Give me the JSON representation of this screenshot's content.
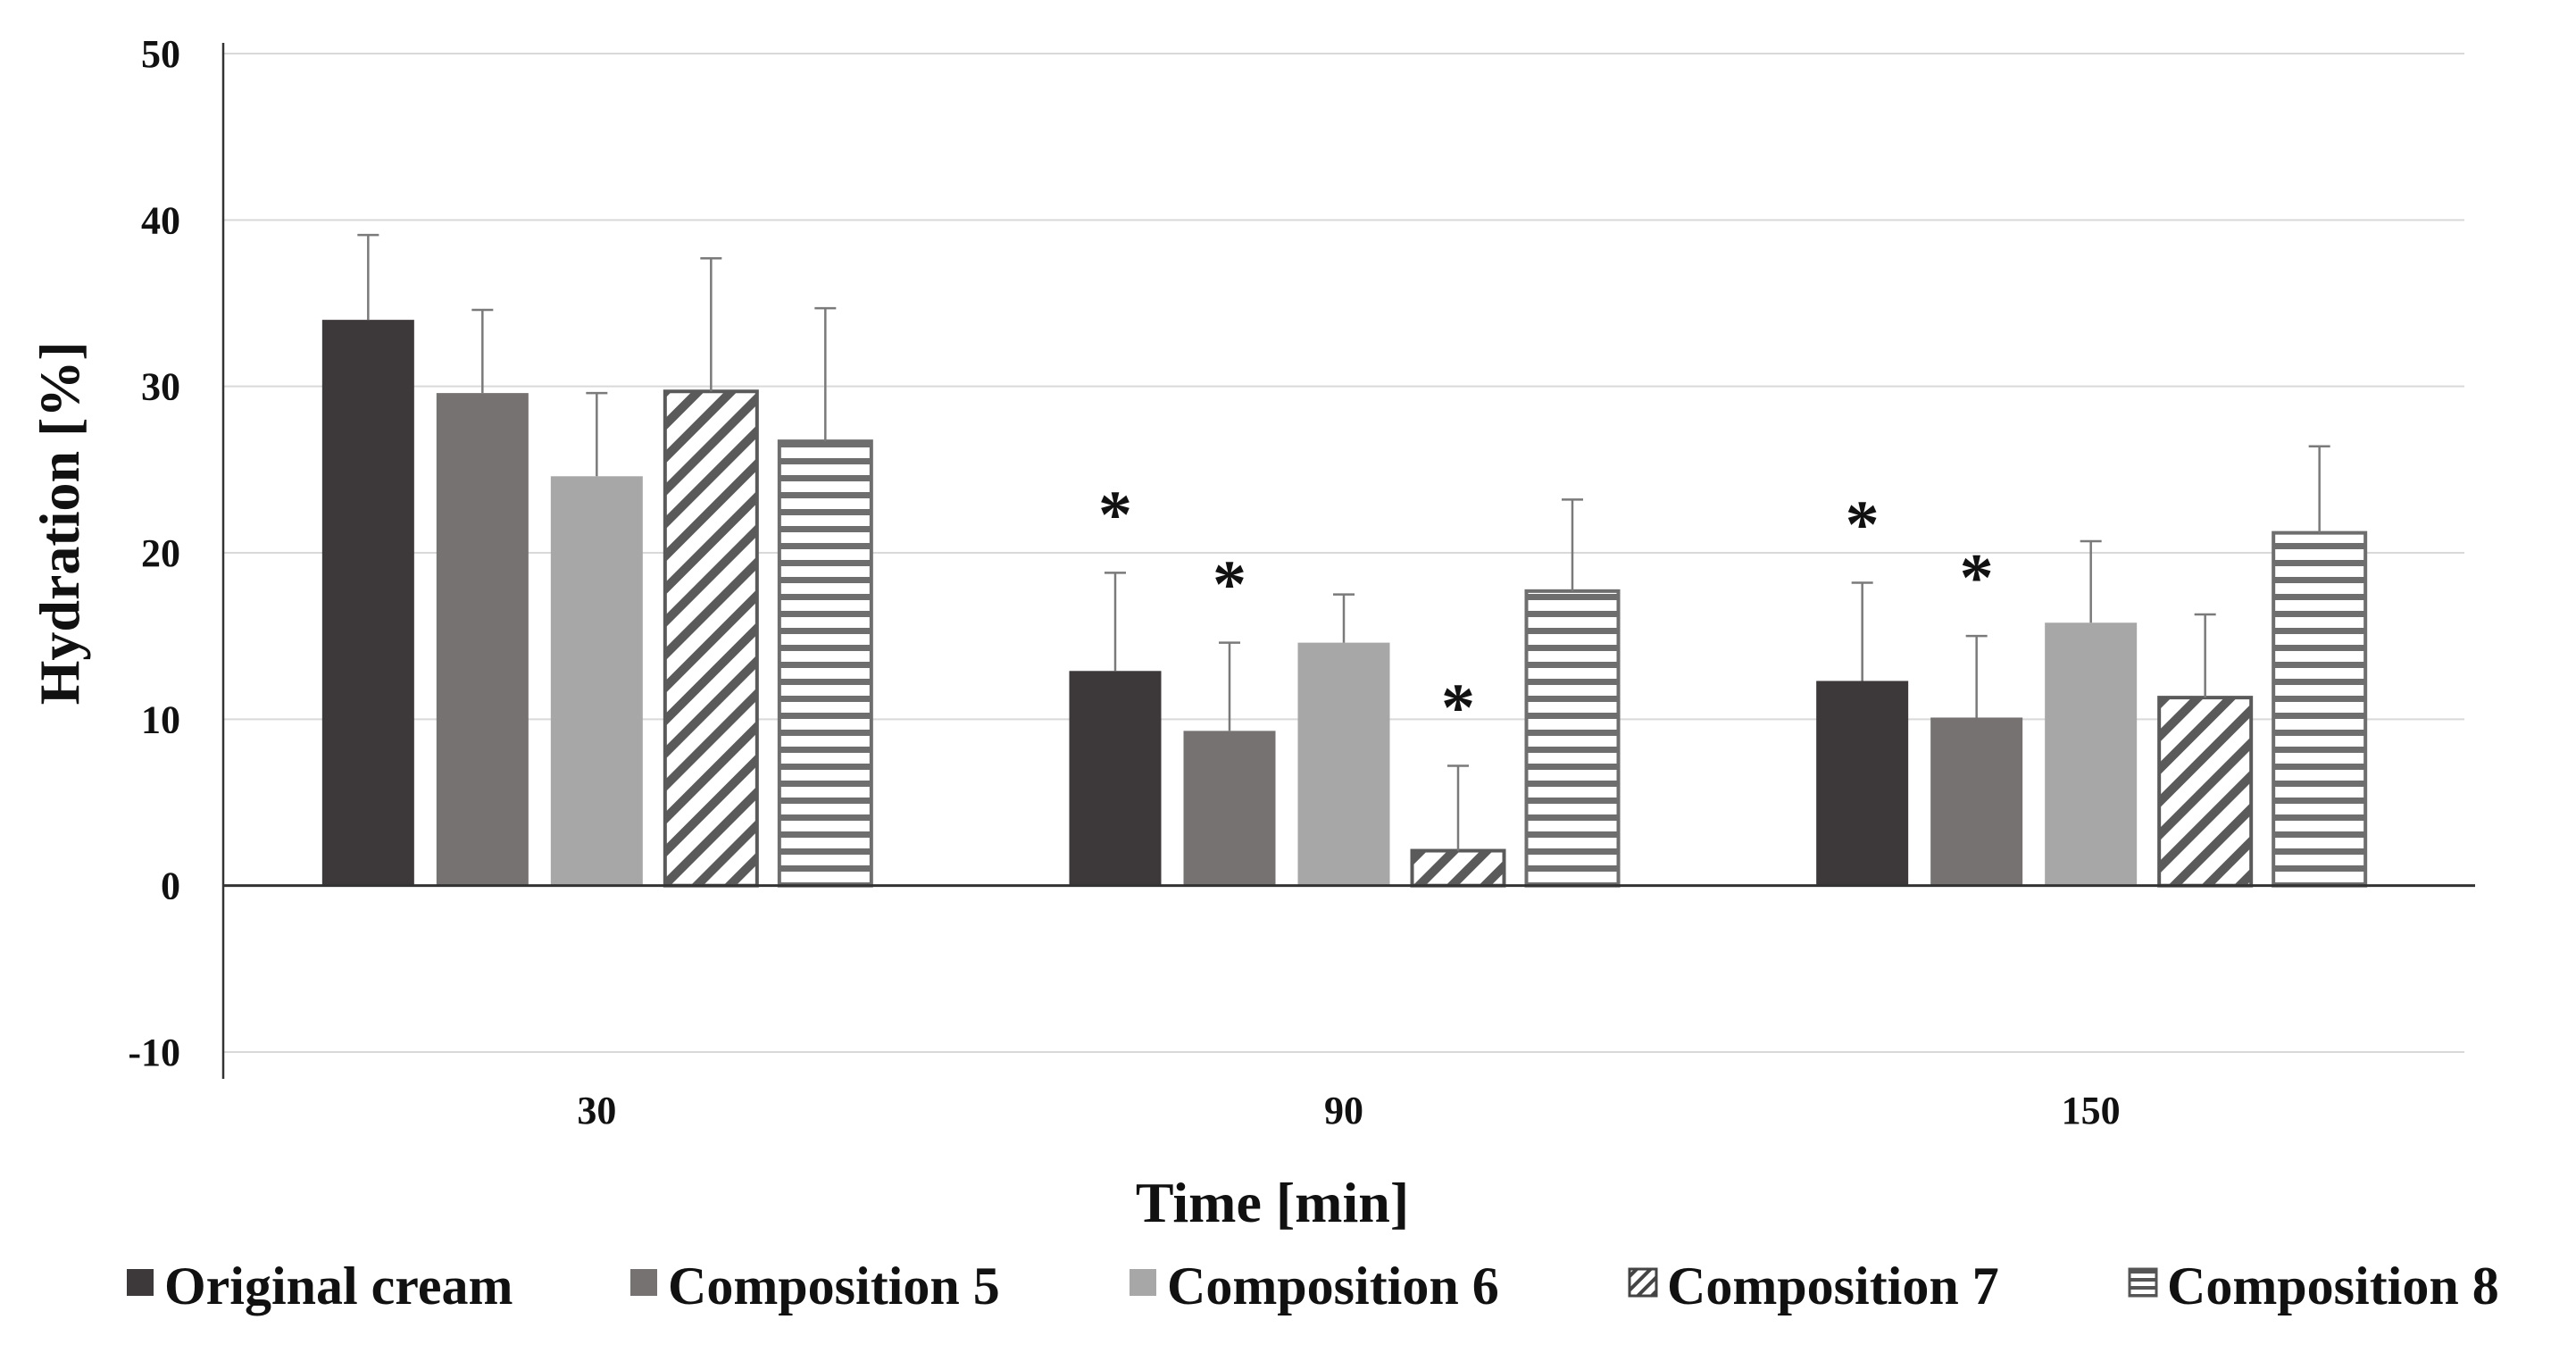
{
  "chart_data": {
    "type": "bar",
    "title": "",
    "xlabel": "Time [min]",
    "ylabel": "Hydration [%]",
    "ylim": [
      -10,
      50
    ],
    "yticks": [
      -10,
      0,
      10,
      20,
      30,
      40,
      50
    ],
    "grid": true,
    "legend_position": "bottom",
    "categories": [
      "30",
      "90",
      "150"
    ],
    "series": [
      {
        "name": "Original cream",
        "pattern": "solid",
        "color": "#3d3839",
        "values": [
          34.0,
          12.9,
          12.3
        ],
        "errors": [
          5.1,
          5.9,
          5.9
        ],
        "significant": [
          false,
          true,
          true
        ]
      },
      {
        "name": "Composition 5",
        "pattern": "solid",
        "color": "#767272",
        "values": [
          29.6,
          9.3,
          10.1
        ],
        "errors": [
          5.0,
          5.3,
          4.9
        ],
        "significant": [
          false,
          true,
          true
        ]
      },
      {
        "name": "Composition 6",
        "pattern": "solid",
        "color": "#a8a7a7",
        "values": [
          24.6,
          14.6,
          15.8
        ],
        "errors": [
          5.0,
          2.9,
          4.9
        ],
        "significant": [
          false,
          false,
          false
        ]
      },
      {
        "name": "Composition 7",
        "pattern": "diagonal-stripes",
        "color": "#5a5a5a",
        "values": [
          29.7,
          2.1,
          11.3
        ],
        "errors": [
          8.0,
          5.1,
          5.0
        ],
        "significant": [
          false,
          true,
          false
        ]
      },
      {
        "name": "Composition 8",
        "pattern": "horizontal-stripes",
        "color": "#6e6e6e",
        "values": [
          26.7,
          17.7,
          21.2
        ],
        "errors": [
          8.0,
          5.5,
          5.2
        ],
        "significant": [
          false,
          false,
          false
        ]
      }
    ],
    "significance_marker": "*"
  }
}
